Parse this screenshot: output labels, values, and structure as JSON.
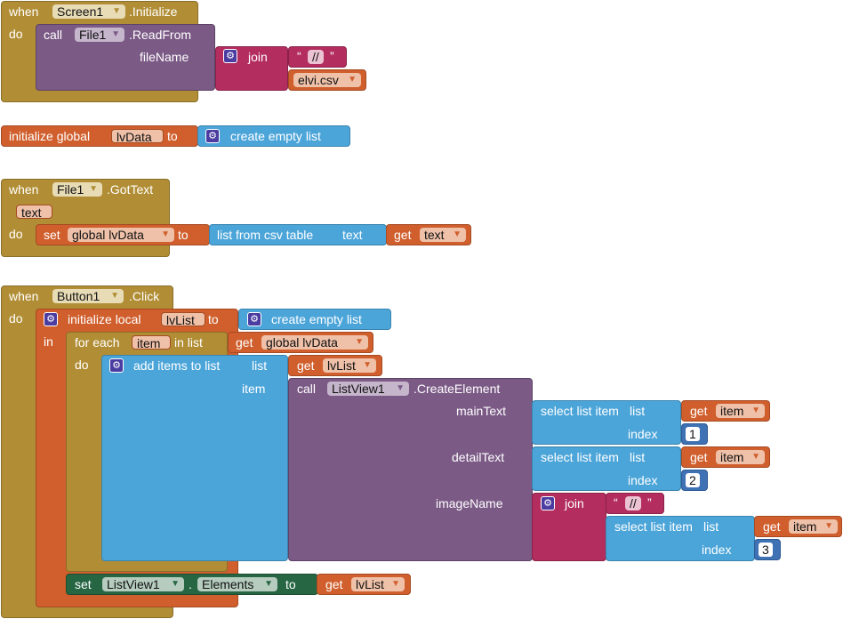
{
  "common": {
    "when": "when",
    "do": "do",
    "in": "in",
    "call": "call",
    "set": "set",
    "get": "get",
    "to": "to",
    "join": "join",
    "gear": "⚙",
    "open_quote": "“",
    "close_quote": "”",
    "arrow": "▼",
    "dot": "."
  },
  "screen_init": {
    "component": "Screen1",
    "event": ".Initialize",
    "file_component": "File1",
    "method": ".ReadFrom",
    "param_label": "fileName",
    "separator": "//",
    "filename": "elvi.csv"
  },
  "global_init": {
    "label": "initialize global",
    "var_name": "lvData",
    "value": "create empty list"
  },
  "gottext": {
    "component": "File1",
    "event": ".GotText",
    "param": "text",
    "target": "global lvData",
    "func": "list from csv table",
    "func_param": "text",
    "get_var": "text"
  },
  "button_click": {
    "component": "Button1",
    "event": ".Click",
    "init_local": "initialize local",
    "local_var": "lvList",
    "local_value": "create empty list",
    "for_each": "for each",
    "item_var": "item",
    "in_list": "in list",
    "list_source": "global lvData",
    "add_items": "add items to list",
    "list_label": "list",
    "item_label": "item",
    "list_var": "lvList",
    "listview": "ListView1",
    "create_element": ".CreateElement",
    "main_text": "mainText",
    "detail_text": "detailText",
    "image_name": "imageName",
    "select_item": "select list item",
    "index_label": "index",
    "item_get": "item",
    "index_main": "1",
    "index_detail": "2",
    "index_image": "3",
    "sep": "//",
    "set_component": "ListView1",
    "set_property": "Elements",
    "set_value_var": "lvList"
  }
}
